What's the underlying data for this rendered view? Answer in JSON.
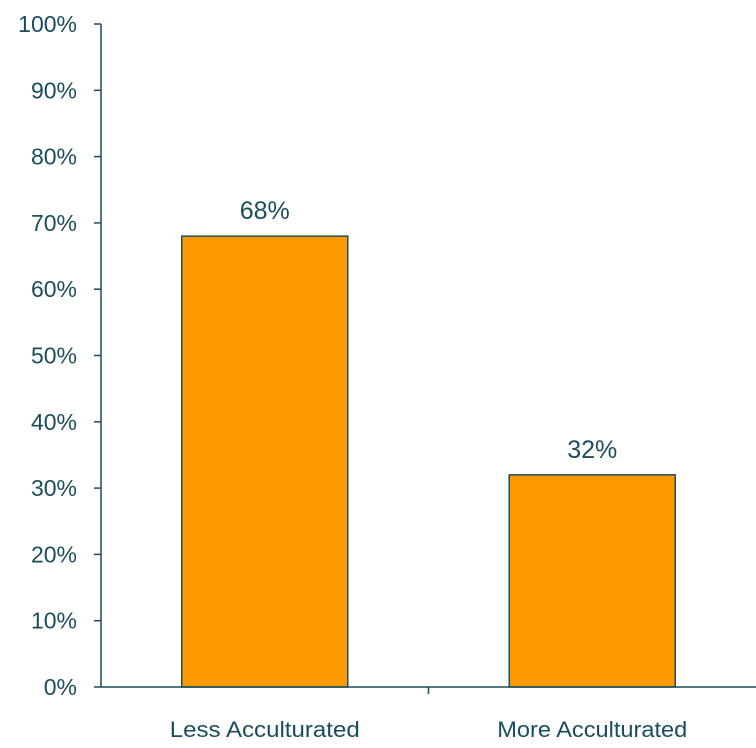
{
  "chart_data": {
    "type": "bar",
    "categories": [
      "Less Acculturated",
      "More Acculturated"
    ],
    "values": [
      68,
      32
    ],
    "data_labels": [
      "68%",
      "32%"
    ],
    "y_tick_labels": [
      "0%",
      "10%",
      "20%",
      "30%",
      "40%",
      "50%",
      "60%",
      "70%",
      "80%",
      "90%",
      "100%"
    ],
    "ylim": [
      0,
      100
    ],
    "grid": false,
    "legend": "none",
    "colors": {
      "bar_fill": "#ff9900",
      "bar_stroke": "#1b4d5c",
      "axis": "#1b4d5c",
      "text": "#1b4d5c"
    }
  }
}
